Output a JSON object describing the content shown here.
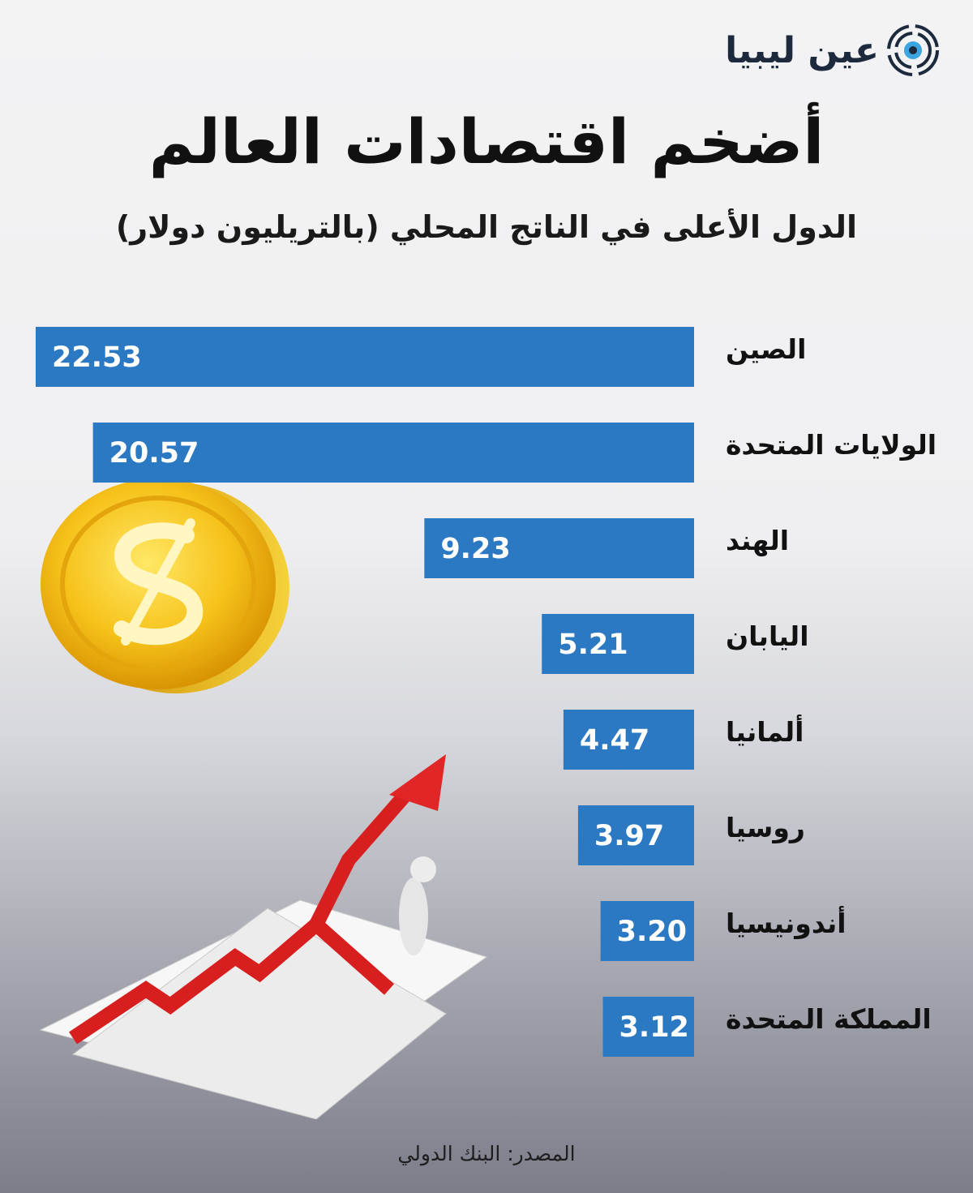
{
  "brand": {
    "name": "عين ليبيا",
    "icon": "eye-logo-icon"
  },
  "header": {
    "title": "أضخم اقتصادات العالم",
    "subtitle": "الدول الأعلى في الناتج المحلي (بالتريليون دولار)"
  },
  "footer": {
    "source": "المصدر: البنك الدولي"
  },
  "colors": {
    "bar": "#2b78c3",
    "text": "#111111",
    "label": "#ffffff"
  },
  "decorations": [
    "gold-dollar-coin-icon",
    "rising-red-arrow-chart-icon"
  ],
  "chart_data": {
    "type": "bar",
    "orientation": "horizontal",
    "title": "أضخم اقتصادات العالم",
    "subtitle": "الدول الأعلى في الناتج المحلي (بالتريليون دولار)",
    "categories": [
      "الصين",
      "الولايات المتحدة",
      "الهند",
      "اليابان",
      "ألمانيا",
      "روسيا",
      "أندونيسيا",
      "المملكة المتحدة"
    ],
    "values": [
      22.53,
      20.57,
      9.23,
      5.21,
      4.47,
      3.97,
      3.2,
      3.12
    ],
    "value_labels": [
      "22.53",
      "20.57",
      "9.23",
      "5.21",
      "4.47",
      "3.97",
      "3.20",
      "3.12"
    ],
    "grid": false,
    "legend": "none"
  }
}
